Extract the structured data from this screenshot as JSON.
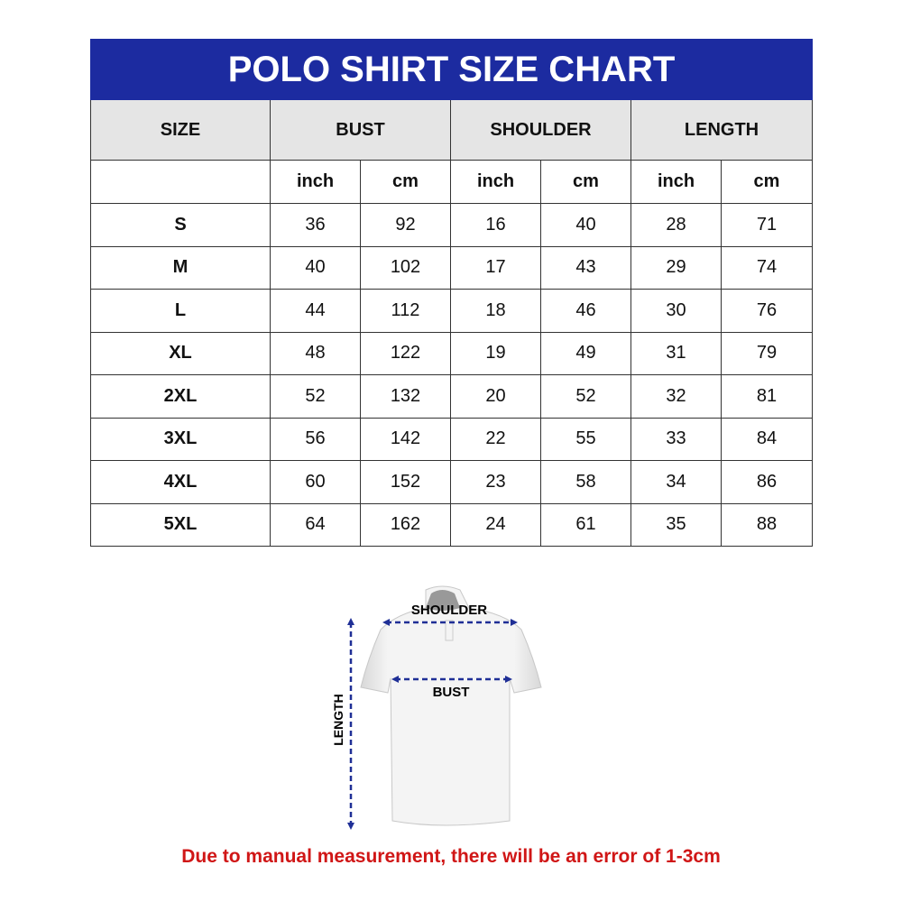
{
  "title": "POLO SHIRT SIZE CHART",
  "headers": [
    "SIZE",
    "BUST",
    "SHOULDER",
    "LENGTH"
  ],
  "units": [
    "inch",
    "cm",
    "inch",
    "cm",
    "inch",
    "cm"
  ],
  "rows": [
    [
      "S",
      "36",
      "92",
      "16",
      "40",
      "28",
      "71"
    ],
    [
      "M",
      "40",
      "102",
      "17",
      "43",
      "29",
      "74"
    ],
    [
      "L",
      "44",
      "112",
      "18",
      "46",
      "30",
      "76"
    ],
    [
      "XL",
      "48",
      "122",
      "19",
      "49",
      "31",
      "79"
    ],
    [
      "2XL",
      "52",
      "132",
      "20",
      "52",
      "32",
      "81"
    ],
    [
      "3XL",
      "56",
      "142",
      "22",
      "55",
      "33",
      "84"
    ],
    [
      "4XL",
      "60",
      "152",
      "23",
      "58",
      "34",
      "86"
    ],
    [
      "5XL",
      "64",
      "162",
      "24",
      "61",
      "35",
      "88"
    ]
  ],
  "diagram": {
    "shoulder": "SHOULDER",
    "bust": "BUST",
    "length": "LENGTH"
  },
  "note": "Due to manual measurement, there will be an error of 1-3cm",
  "colors": {
    "header": "#1c2ba0",
    "arrow": "#1f2f96",
    "note": "#d01616"
  }
}
